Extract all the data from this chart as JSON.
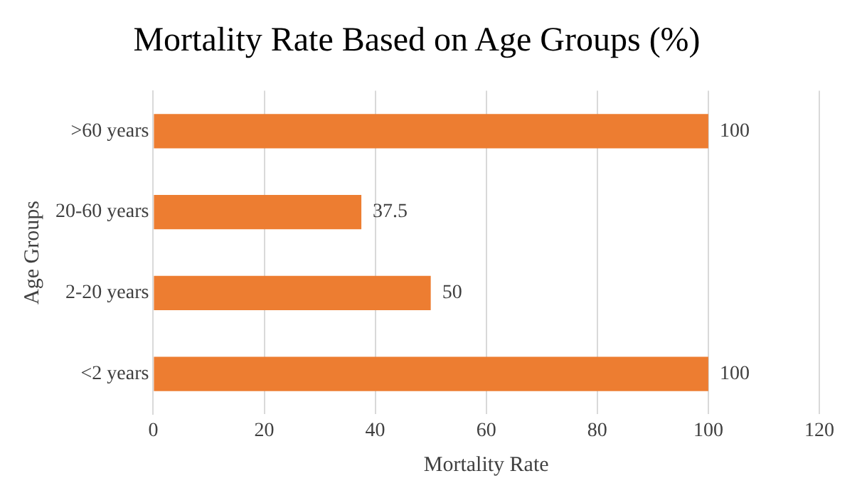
{
  "chart_data": {
    "type": "bar",
    "orientation": "horizontal",
    "title": "Mortality Rate Based on Age Groups (%)",
    "xlabel": "Mortality Rate",
    "ylabel": "Age Groups",
    "categories": [
      ">60 years",
      "20-60 years",
      "2-20 years",
      "<2 years"
    ],
    "values": [
      100,
      37.5,
      50,
      100
    ],
    "color": "#ed7d31",
    "xlim": [
      0,
      120
    ],
    "xticks": [
      0,
      20,
      40,
      60,
      80,
      100,
      120
    ],
    "grid": "x",
    "data_labels": true,
    "legend": false
  }
}
